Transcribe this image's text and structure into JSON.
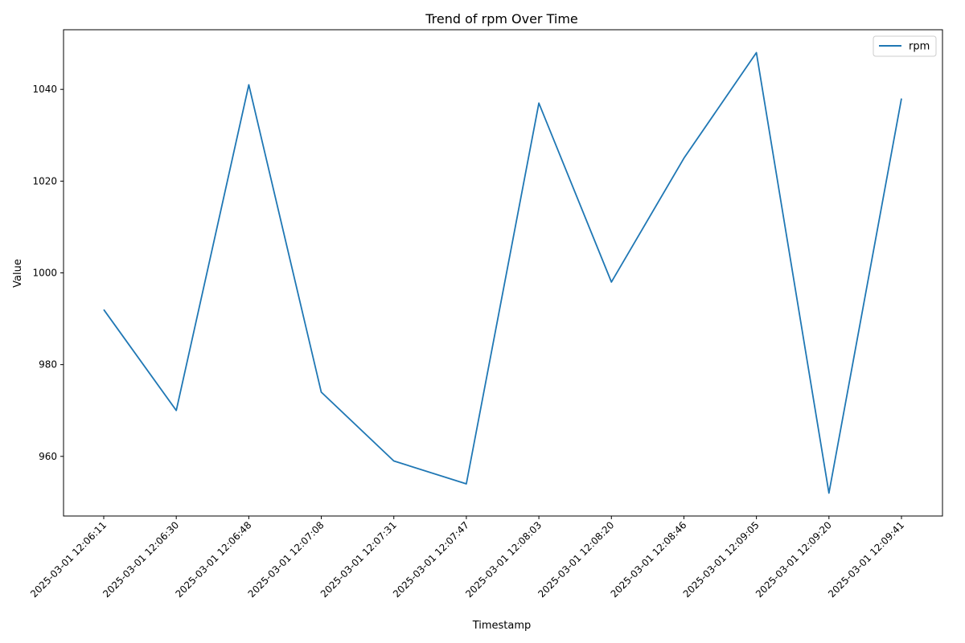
{
  "chart_data": {
    "type": "line",
    "title": "Trend of rpm Over Time",
    "xlabel": "Timestamp",
    "ylabel": "Value",
    "x": [
      "2025-03-01 12:06:11",
      "2025-03-01 12:06:30",
      "2025-03-01 12:06:48",
      "2025-03-01 12:07:08",
      "2025-03-01 12:07:31",
      "2025-03-01 12:07:47",
      "2025-03-01 12:08:03",
      "2025-03-01 12:08:20",
      "2025-03-01 12:08:46",
      "2025-03-01 12:09:05",
      "2025-03-01 12:09:20",
      "2025-03-01 12:09:41"
    ],
    "series": [
      {
        "name": "rpm",
        "color": "#1f77b4",
        "values": [
          992,
          970,
          1041,
          974,
          959,
          954,
          1037,
          998,
          1025,
          1048,
          952,
          1038
        ]
      }
    ],
    "ylim": [
      947,
      1053
    ],
    "yticks": [
      960,
      980,
      1000,
      1020,
      1040
    ],
    "grid": false,
    "legend": "top-right"
  }
}
